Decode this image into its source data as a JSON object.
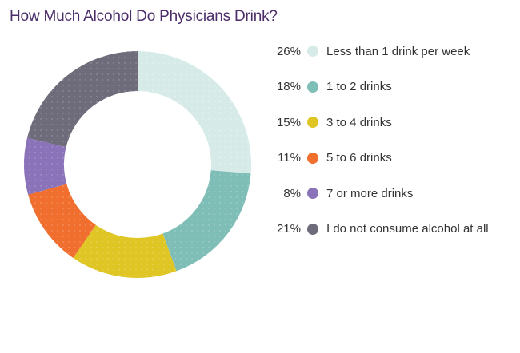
{
  "chart_data": {
    "type": "pie",
    "title": "How Much Alcohol Do Physicians Drink?",
    "variant": "donut",
    "unit": "%",
    "legend_position": "right",
    "slices": [
      {
        "label": "Less than 1 drink per week",
        "value": 26,
        "value_label": "26%",
        "color": "#d6ebe8"
      },
      {
        "label": "1 to 2 drinks",
        "value": 18,
        "value_label": "18%",
        "color": "#7fbdb7"
      },
      {
        "label": "3 to 4 drinks",
        "value": 15,
        "value_label": "15%",
        "color": "#dfc625"
      },
      {
        "label": "5 to 6 drinks",
        "value": 11,
        "value_label": "11%",
        "color": "#f06f2e"
      },
      {
        "label": "7 or more drinks",
        "value": 8,
        "value_label": "8%",
        "color": "#8a73b8"
      },
      {
        "label": "I do not consume alcohol at all",
        "value": 21,
        "value_label": "21%",
        "color": "#6e6b7a"
      }
    ]
  }
}
